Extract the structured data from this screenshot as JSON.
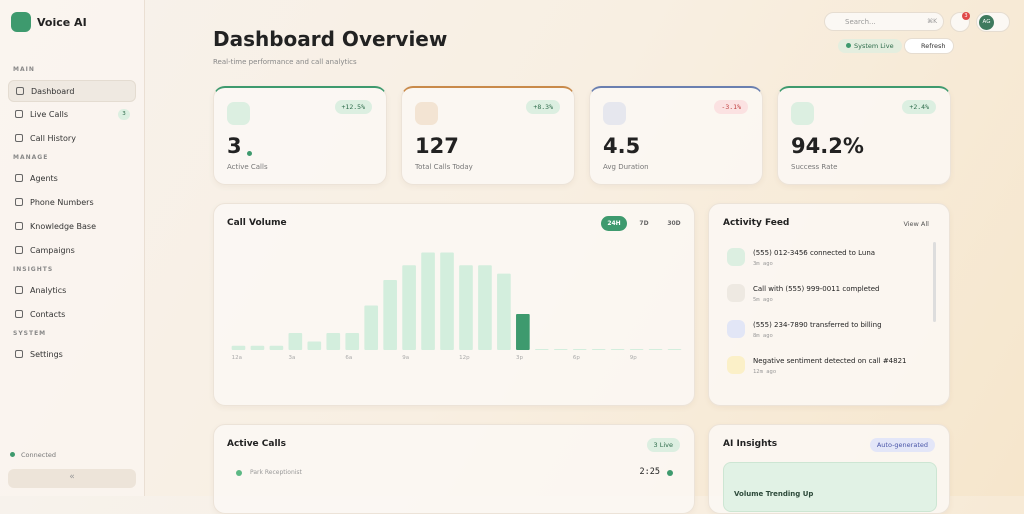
{
  "brand": "Voice AI",
  "nav": [
    {
      "title": "MAIN",
      "items": [
        {
          "label": "Dashboard"
        },
        {
          "label": "Live Calls",
          "badge": "3"
        },
        {
          "label": "Call History"
        }
      ]
    },
    {
      "title": "MANAGE",
      "items": [
        {
          "label": "Agents"
        },
        {
          "label": "Phone Numbers"
        },
        {
          "label": "Knowledge Base"
        },
        {
          "label": "Campaigns"
        }
      ]
    },
    {
      "title": "INSIGHTS",
      "items": [
        {
          "label": "Analytics"
        },
        {
          "label": "Contacts"
        }
      ]
    },
    {
      "title": "SYSTEM",
      "items": [
        {
          "label": "Settings"
        }
      ]
    }
  ],
  "status": "Connected",
  "topbar": {
    "search": "Search...",
    "shortcut": "⌘K",
    "notifications": "3",
    "avatar": "AG"
  },
  "header": {
    "title": "Dashboard Overview",
    "subtitle": "Real-time performance and call analytics",
    "system_status": "System Live",
    "refresh": "Refresh"
  },
  "stats": [
    {
      "value": "3",
      "label": "Active Calls",
      "change": "+12.5%"
    },
    {
      "value": "127",
      "label": "Total Calls Today",
      "change": "+8.3%"
    },
    {
      "value": "4.5",
      "label": "Avg Duration",
      "change": "-3.1%"
    },
    {
      "value": "94.2%",
      "label": "Success Rate",
      "change": "+2.4%"
    }
  ],
  "call_volume": {
    "title": "Call Volume",
    "ranges": [
      "24H",
      "7D",
      "30D"
    ],
    "chart_data": {
      "type": "bar",
      "categories": [
        "12a",
        null,
        null,
        "3a",
        null,
        null,
        "6a",
        null,
        null,
        "9a",
        null,
        null,
        "12p",
        null,
        null,
        "3p",
        null,
        null,
        "6p",
        null,
        null,
        "9p",
        null,
        null
      ],
      "values": [
        4,
        4,
        4,
        16,
        8,
        16,
        16,
        42,
        66,
        80,
        92,
        92,
        80,
        80,
        72,
        34,
        1,
        1,
        1,
        1,
        1,
        1,
        1,
        1
      ],
      "ylim": [
        0,
        100
      ],
      "color": "#d3eedd",
      "highlight_color": "#3e9a6e",
      "highlight_index": 15
    }
  },
  "activity": {
    "title": "Activity Feed",
    "action": "View All",
    "items": [
      {
        "text": "(555) 012-3456 connected to Luna",
        "time": "3m ago"
      },
      {
        "text": "Call with (555) 999-0011 completed",
        "time": "5m ago"
      },
      {
        "text": "(555) 234-7890 transferred to billing",
        "time": "8m ago"
      },
      {
        "text": "Negative sentiment detected on call #4821",
        "time": "12m ago"
      }
    ]
  },
  "active_calls": {
    "title": "Active Calls",
    "badge": "3 Live",
    "rows": [
      {
        "name": "Park Receptionist",
        "duration": "2:25"
      }
    ]
  },
  "ai_insights": {
    "title": "AI Insights",
    "badge": "Auto-generated",
    "card_title": "Volume Trending Up"
  }
}
